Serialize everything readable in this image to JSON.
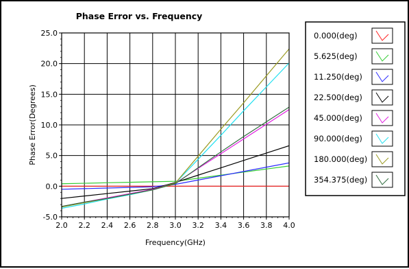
{
  "chart_data": {
    "type": "line",
    "title": "Phase Error vs. Frequency",
    "xlabel": "Frequency(GHz)",
    "ylabel": "Phase Error(Degrees)",
    "xlim": [
      2.0,
      4.0
    ],
    "ylim": [
      -5.0,
      25.0
    ],
    "x_ticks": [
      "2.0",
      "2.2",
      "2.4",
      "2.6",
      "2.8",
      "3.0",
      "3.2",
      "3.4",
      "3.6",
      "3.8",
      "4.0"
    ],
    "y_ticks": [
      "-5.0",
      "0.0",
      "5.0",
      "10.0",
      "15.0",
      "20.0",
      "25.0"
    ],
    "grid": true,
    "legend_position": "right",
    "x": [
      2.0,
      2.2,
      2.4,
      2.6,
      2.8,
      3.0,
      3.2,
      3.4,
      3.6,
      3.8,
      4.0
    ],
    "series": [
      {
        "name": "0.000(deg)",
        "color": "#ff2020",
        "values": [
          0.0,
          0.0,
          0.0,
          0.0,
          0.0,
          0.0,
          0.0,
          0.0,
          0.0,
          0.0,
          0.0
        ]
      },
      {
        "name": "5.625(deg)",
        "color": "#33cc33",
        "values": [
          0.4,
          0.48,
          0.56,
          0.64,
          0.72,
          0.8,
          1.3,
          1.8,
          2.3,
          2.8,
          3.3
        ]
      },
      {
        "name": "11.250(deg)",
        "color": "#2a2aff",
        "values": [
          -0.5,
          -0.4,
          -0.3,
          -0.2,
          -0.1,
          0.3,
          1.0,
          1.7,
          2.4,
          3.1,
          3.8
        ]
      },
      {
        "name": "22.500(deg)",
        "color": "#000000",
        "values": [
          -2.0,
          -1.6,
          -1.2,
          -0.8,
          -0.4,
          0.6,
          1.8,
          3.0,
          4.2,
          5.4,
          6.6
        ]
      },
      {
        "name": "45.000(deg)",
        "color": "#e020e0",
        "values": [
          -3.3,
          -2.6,
          -1.9,
          -1.2,
          -0.5,
          0.5,
          2.9,
          5.3,
          7.7,
          10.1,
          12.5
        ]
      },
      {
        "name": "90.000(deg)",
        "color": "#20e0f0",
        "values": [
          -3.6,
          -2.9,
          -2.1,
          -1.4,
          -0.6,
          0.5,
          4.4,
          8.3,
          12.3,
          16.2,
          20.1
        ]
      },
      {
        "name": "180.000(deg)",
        "color": "#9a9a20",
        "values": [
          -3.4,
          -2.7,
          -2.0,
          -1.3,
          -0.6,
          0.5,
          4.9,
          9.3,
          13.6,
          18.0,
          22.4
        ]
      },
      {
        "name": "354.375(deg)",
        "color": "#2e6b3c",
        "values": [
          -3.3,
          -2.6,
          -2.0,
          -1.3,
          -0.6,
          0.4,
          3.0,
          5.6,
          8.1,
          10.5,
          12.9
        ]
      }
    ]
  }
}
